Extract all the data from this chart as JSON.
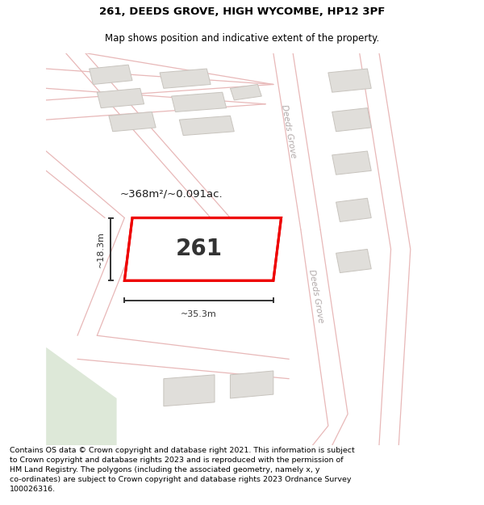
{
  "title": "261, DEEDS GROVE, HIGH WYCOMBE, HP12 3PF",
  "subtitle": "Map shows position and indicative extent of the property.",
  "footer": "Contains OS data © Crown copyright and database right 2021. This information is subject\nto Crown copyright and database rights 2023 and is reproduced with the permission of\nHM Land Registry. The polygons (including the associated geometry, namely x, y\nco-ordinates) are subject to Crown copyright and database rights 2023 Ordnance Survey\n100026316.",
  "map_bg": "#f2f0eb",
  "road_line_color": "#e8b8b8",
  "building_fill": "#e0deda",
  "building_edge": "#c8c4be",
  "highlight_fill": "#ffffff",
  "highlight_edge": "#ee0000",
  "highlight_lw": 2.2,
  "green_fill": "#dde8d8",
  "label_number": "261",
  "area_label": "~368m²/~0.091ac.",
  "dim_width": "~35.3m",
  "dim_height": "~18.3m",
  "street_label": "Deeds Grove",
  "title_fontsize": 9.5,
  "subtitle_fontsize": 8.5,
  "footer_fontsize": 6.8
}
